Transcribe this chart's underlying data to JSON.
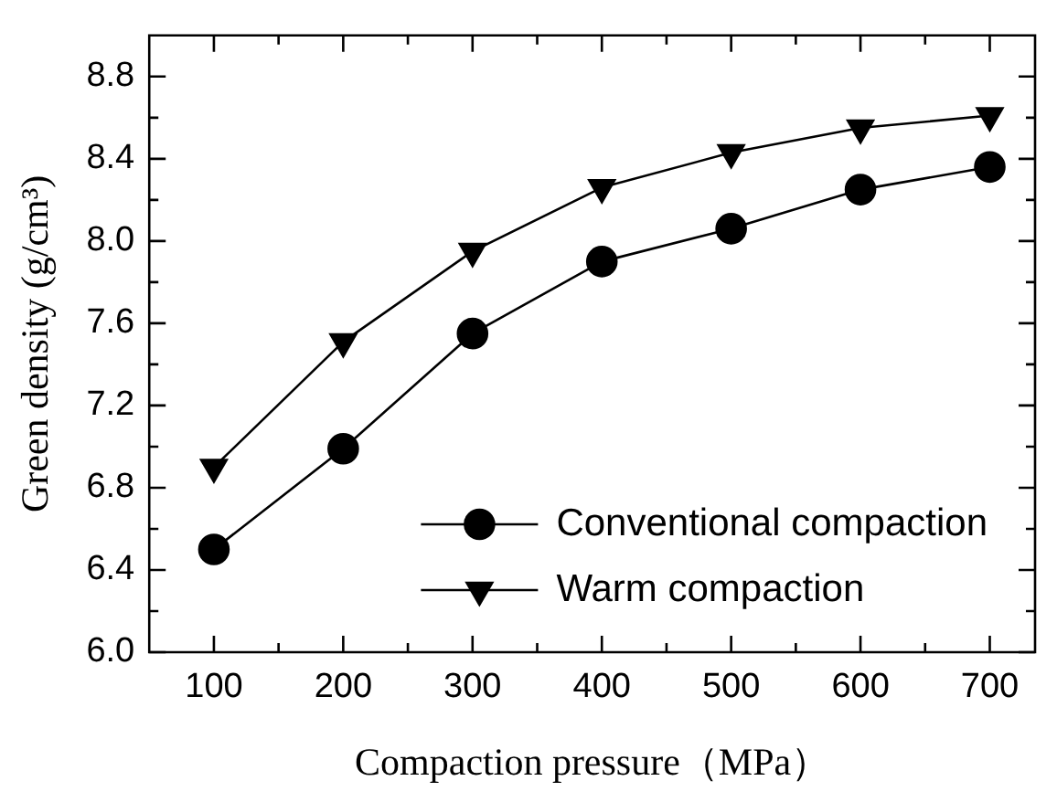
{
  "chart_data": {
    "type": "line",
    "xlabel": "Compaction pressure（MPa）",
    "ylabel": "Green density (g/cm³)",
    "x": [
      100,
      200,
      300,
      400,
      500,
      600,
      700
    ],
    "series": [
      {
        "name": "Conventional compaction",
        "color": "#000000",
        "marker": "circle",
        "values": [
          6.5,
          6.99,
          7.55,
          7.9,
          8.06,
          8.25,
          8.36
        ]
      },
      {
        "name": "Warm compaction",
        "color": "#000000",
        "marker": "triangle",
        "values": [
          6.9,
          7.51,
          7.95,
          8.26,
          8.43,
          8.55,
          8.61
        ]
      }
    ],
    "xlim": [
      50,
      735
    ],
    "xticks": [
      100,
      {
        "value": 150,
        "label": null
      },
      200,
      {
        "value": 250,
        "label": null
      },
      300,
      {
        "value": 350,
        "label": null
      },
      400,
      {
        "value": 450,
        "label": null
      },
      500,
      {
        "value": 550,
        "label": null
      },
      600,
      {
        "value": 650,
        "label": null
      },
      700
    ],
    "ylim": [
      6.0,
      9.0
    ],
    "yticks": [
      {
        "value": 6.0,
        "label": "6.0"
      },
      {
        "value": 6.2,
        "label": null
      },
      {
        "value": 6.4,
        "label": "6.4"
      },
      {
        "value": 6.6,
        "label": null
      },
      {
        "value": 6.8,
        "label": "6.8"
      },
      {
        "value": 7.0,
        "label": null
      },
      {
        "value": 7.2,
        "label": "7.2"
      },
      {
        "value": 7.4,
        "label": null
      },
      {
        "value": 7.6,
        "label": "7.6"
      },
      {
        "value": 7.8,
        "label": null
      },
      {
        "value": 8.0,
        "label": "8.0"
      },
      {
        "value": 8.2,
        "label": null
      },
      {
        "value": 8.4,
        "label": "8.4"
      },
      {
        "value": 8.6,
        "label": null
      },
      {
        "value": 8.8,
        "label": "8.8"
      }
    ],
    "grid": false,
    "legend": "bottom right",
    "line_style": "solid"
  }
}
